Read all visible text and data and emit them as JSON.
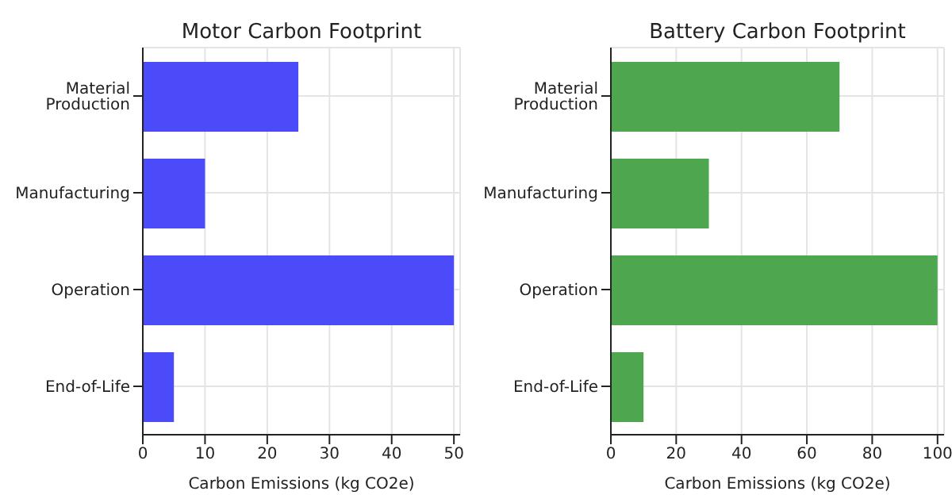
{
  "chart_data": [
    {
      "type": "bar",
      "orientation": "horizontal",
      "title": "Motor Carbon Footprint",
      "xlabel": "Carbon Emissions (kg CO2e)",
      "categories": [
        "Material Production",
        "Manufacturing",
        "Operation",
        "End-of-Life"
      ],
      "values": [
        25,
        10,
        50,
        5
      ],
      "color": "#4b4bfa",
      "xlim": [
        0,
        51
      ],
      "xticks": [
        0,
        10,
        20,
        30,
        40,
        50
      ],
      "grid": true
    },
    {
      "type": "bar",
      "orientation": "horizontal",
      "title": "Battery Carbon Footprint",
      "xlabel": "Carbon Emissions (kg CO2e)",
      "categories": [
        "Material Production",
        "Manufacturing",
        "Operation",
        "End-of-Life"
      ],
      "values": [
        70,
        30,
        100,
        10
      ],
      "color": "#4ea64e",
      "xlim": [
        0,
        102
      ],
      "xticks": [
        0,
        20,
        40,
        60,
        80,
        100
      ],
      "grid": true
    }
  ]
}
